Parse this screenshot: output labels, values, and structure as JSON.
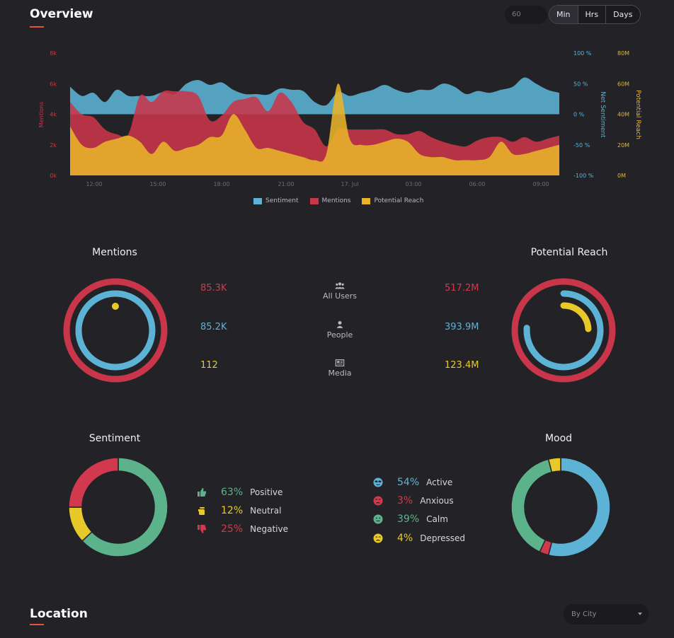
{
  "overview": {
    "title": "Overview",
    "input_value": "60",
    "range_buttons": [
      "Min",
      "Hrs",
      "Days"
    ]
  },
  "chart_data": {
    "type": "area",
    "x_ticks": [
      "12:00",
      "15:00",
      "18:00",
      "21:00",
      "17. Jul",
      "03:00",
      "06:00",
      "09:00"
    ],
    "y_left": {
      "label": "Mentions",
      "ticks": [
        "0k",
        "2k",
        "4k",
        "6k",
        "8k"
      ],
      "range": [
        0,
        8000
      ]
    },
    "y_right1": {
      "label": "Net Sentiment",
      "ticks": [
        "-100 %",
        "-50 %",
        "0 %",
        "50 %",
        "100 %"
      ],
      "range": [
        -100,
        100
      ]
    },
    "y_right2": {
      "label": "Potential Reach",
      "ticks": [
        "0M",
        "20M",
        "40M",
        "60M",
        "80M"
      ],
      "range": [
        0,
        80
      ]
    },
    "legend": [
      "Sentiment",
      "Mentions",
      "Potential Reach"
    ],
    "series": [
      {
        "name": "Sentiment",
        "color": "#5cb3d6",
        "axis": "Net Sentiment",
        "baseline": 0,
        "values": [
          45,
          30,
          35,
          20,
          40,
          30,
          30,
          30,
          36,
          33,
          50,
          56,
          48,
          52,
          40,
          33,
          33,
          32,
          42,
          40,
          38,
          20,
          15,
          36,
          30,
          35,
          40,
          48,
          40,
          35,
          40,
          40,
          50,
          45,
          33,
          38,
          35,
          40,
          45,
          60,
          50,
          40,
          35
        ]
      },
      {
        "name": "Mentions",
        "color": "#c9364a",
        "axis": "Mentions",
        "baseline": 0,
        "values": [
          4.8,
          4.0,
          3.8,
          3.0,
          2.7,
          2.7,
          5.2,
          4.8,
          5.5,
          5.5,
          5.5,
          5.2,
          3.6,
          3.9,
          4.8,
          5.0,
          5.1,
          4.2,
          5.4,
          4.8,
          3.5,
          3.0,
          1.9,
          3.0,
          3.0,
          3.0,
          3.0,
          3.0,
          2.7,
          2.7,
          2.9,
          2.5,
          2.2,
          2.0,
          1.9,
          2.3,
          2.5,
          2.5,
          2.2,
          2.5,
          2.2,
          2.4,
          2.6
        ]
      },
      {
        "name": "Potential Reach",
        "color": "#e8b42a",
        "axis": "Potential Reach",
        "baseline": 0,
        "values": [
          32,
          20,
          18,
          22,
          24,
          26,
          22,
          14,
          22,
          16,
          18,
          20,
          25,
          26,
          40,
          30,
          18,
          18,
          16,
          14,
          12,
          10,
          14,
          60,
          24,
          20,
          20,
          22,
          24,
          22,
          14,
          12,
          12,
          10,
          10,
          10,
          12,
          22,
          14,
          14,
          16,
          18,
          20
        ]
      }
    ]
  },
  "mentions": {
    "title": "Mentions",
    "ring_outer": {
      "color": "#c9364a",
      "fraction": 1.0
    },
    "ring_inner": {
      "color": "#5cb3d6",
      "fraction": 1.0
    },
    "ring_dot": {
      "color": "#e8c92a"
    }
  },
  "reach": {
    "title": "Potential Reach",
    "ring_outer": {
      "color": "#c9364a",
      "fraction": 1.0
    },
    "ring_mid": {
      "color": "#5cb3d6",
      "fraction": 0.76
    },
    "ring_inner": {
      "color": "#e8c92a",
      "fraction": 0.24
    }
  },
  "stats": {
    "rows": [
      {
        "label": "All Users",
        "icon": "users-icon",
        "mentions": "85.3K",
        "reach": "517.2M",
        "color": "#d2394e"
      },
      {
        "label": "People",
        "icon": "person-icon",
        "mentions": "85.2K",
        "reach": "393.9M",
        "color": "#5cb3d6"
      },
      {
        "label": "Media",
        "icon": "newspaper-icon",
        "mentions": "112",
        "reach": "123.4M",
        "color": "#e8c92a"
      }
    ]
  },
  "sentiment": {
    "title": "Sentiment",
    "items": [
      {
        "pct": "63%",
        "label": "Positive",
        "value": 63,
        "color": "#5cb38b",
        "icon": "thumbs-up-icon"
      },
      {
        "pct": "12%",
        "label": "Neutral",
        "value": 12,
        "color": "#e8c92a",
        "icon": "hand-icon"
      },
      {
        "pct": "25%",
        "label": "Negative",
        "value": 25,
        "color": "#d2394e",
        "icon": "thumbs-down-icon"
      }
    ]
  },
  "mood": {
    "title": "Mood",
    "items": [
      {
        "pct": "54%",
        "label": "Active",
        "value": 54,
        "color": "#5cb3d6",
        "icon": "cool-face-icon"
      },
      {
        "pct": "3%",
        "label": "Anxious",
        "value": 3,
        "color": "#d2394e",
        "icon": "anxious-face-icon"
      },
      {
        "pct": "39%",
        "label": "Calm",
        "value": 39,
        "color": "#5cb38b",
        "icon": "calm-face-icon"
      },
      {
        "pct": "4%",
        "label": "Depressed",
        "value": 4,
        "color": "#e8c92a",
        "icon": "sad-face-icon"
      }
    ]
  },
  "location": {
    "title": "Location",
    "select_value": "By City"
  }
}
